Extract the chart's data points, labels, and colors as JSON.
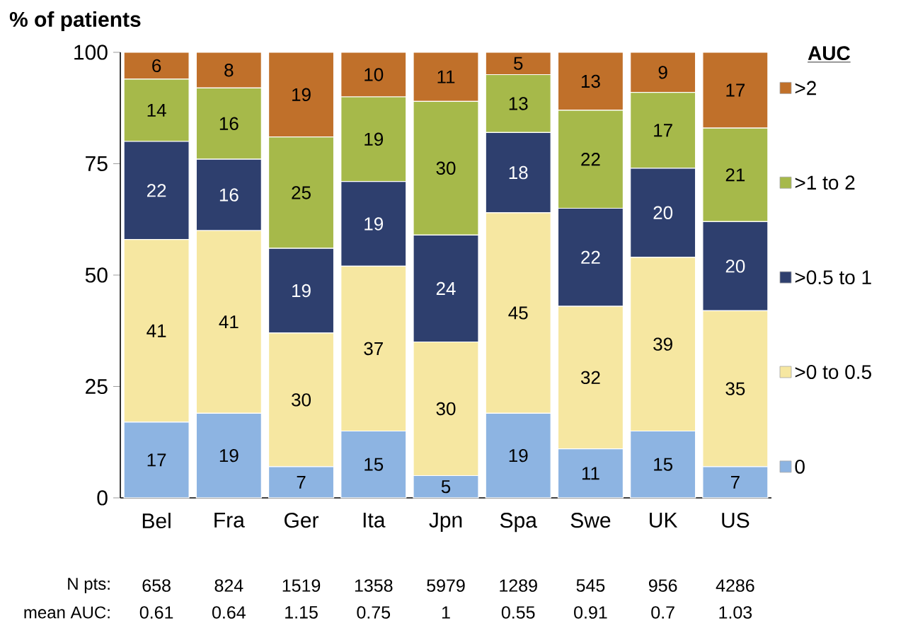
{
  "chart_data": {
    "type": "bar",
    "stacked": true,
    "ylabel": "% of patients",
    "legend_title": "AUC",
    "legend": "right",
    "categories": [
      "Bel",
      "Fra",
      "Ger",
      "Ita",
      "Jpn",
      "Spa",
      "Swe",
      "UK",
      "US"
    ],
    "ylim": [
      0,
      100
    ],
    "yticks": [
      0,
      25,
      50,
      75,
      100
    ],
    "data_labels": true,
    "series": [
      {
        "name": "0",
        "color": "#8db4e2",
        "values": [
          17,
          19,
          7,
          15,
          5,
          19,
          11,
          15,
          7
        ]
      },
      {
        "name": ">0 to 0.5",
        "color": "#f6e7a1",
        "values": [
          41,
          41,
          30,
          37,
          30,
          45,
          32,
          39,
          35
        ]
      },
      {
        "name": ">0.5 to 1",
        "color": "#2e3f6e",
        "values": [
          22,
          16,
          19,
          19,
          24,
          18,
          22,
          20,
          20
        ]
      },
      {
        "name": ">1 to 2",
        "color": "#a6b94a",
        "values": [
          14,
          16,
          25,
          19,
          30,
          13,
          22,
          17,
          21
        ]
      },
      {
        "name": ">2",
        "color": "#c0702a",
        "values": [
          6,
          8,
          19,
          10,
          11,
          5,
          13,
          9,
          17
        ]
      }
    ],
    "annotations": [
      "N pts:",
      "658",
      "824",
      "1519",
      "1358",
      "5979",
      "1289",
      "545",
      "956",
      "4286",
      "mean AUC:",
      "0.61",
      "0.64",
      "1.15",
      "0.75",
      "1",
      "0.55",
      "0.91",
      "0.7",
      "1.03"
    ]
  }
}
